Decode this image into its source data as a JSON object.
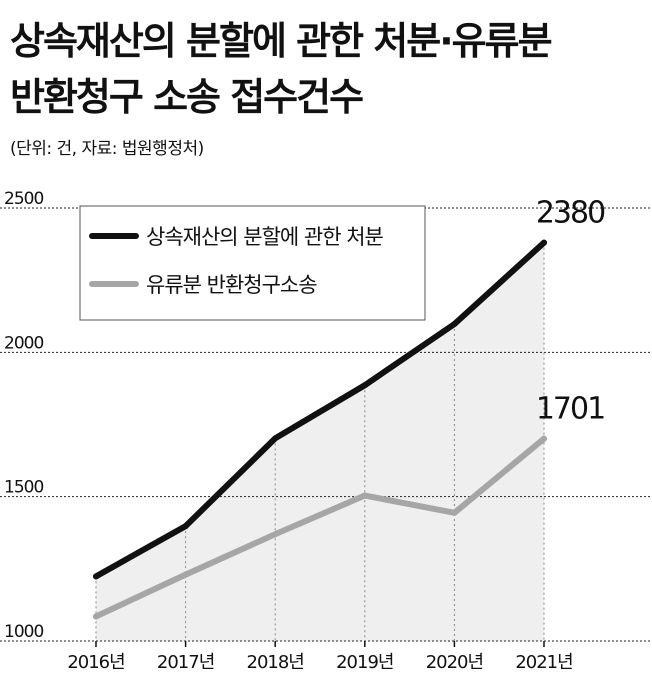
{
  "title_line1": "상속재산의 분할에 관한 처분·유류분",
  "title_line2": "반환청구 소송 접수건수",
  "unit_note": "(단위: 건, 자료: 법원행정처)",
  "colors": {
    "series1": "#111111",
    "series2": "#a6a6a6",
    "area": "#efefef",
    "grid": "#222222"
  },
  "chart_data": {
    "type": "line",
    "categories": [
      "2016년",
      "2017년",
      "2018년",
      "2019년",
      "2020년",
      "2021년"
    ],
    "series": [
      {
        "name": "상속재산의 분할에 관한 처분",
        "values": [
          1224,
          1398,
          1702,
          1886,
          2098,
          2380
        ],
        "color": "#111111"
      },
      {
        "name": "유류분 반환청구소송",
        "values": [
          1085,
          1230,
          1370,
          1504,
          1444,
          1701
        ],
        "color": "#a6a6a6"
      }
    ],
    "labels": [
      {
        "series": 0,
        "index": 5,
        "text": "2380"
      },
      {
        "series": 1,
        "index": 5,
        "text": "1701"
      }
    ],
    "yticks": [
      "1000",
      "1500",
      "2000",
      "2500"
    ],
    "ylim": [
      1000,
      2500
    ],
    "grid": "horizontal-dashed",
    "legend": "top-left",
    "area_under": "series 0 (light gray fill)"
  }
}
